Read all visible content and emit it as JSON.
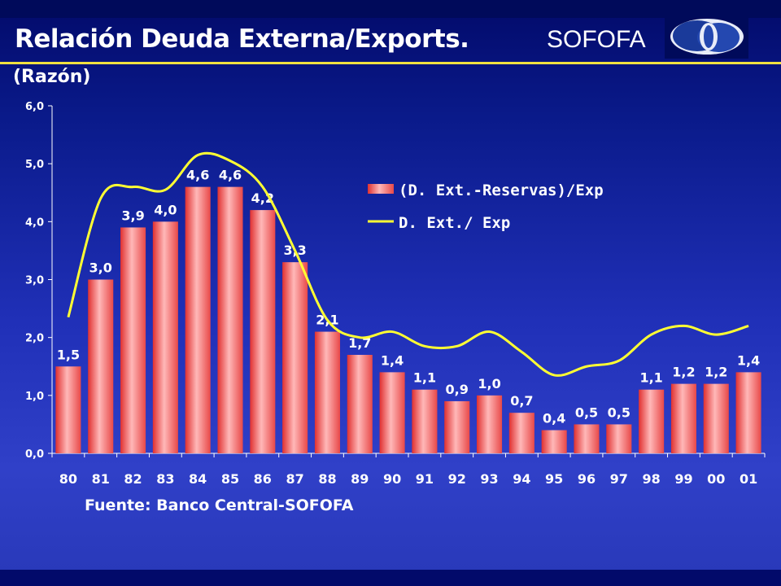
{
  "header": {
    "title": "Relación Deuda Externa/Exports.",
    "brand": "SOFOFA",
    "subtitle": "(Razón)"
  },
  "footer": {
    "source": "Fuente: Banco Central-SOFOFA"
  },
  "colors": {
    "bar": "#e84848",
    "bar_highlight": "#ffb0b0",
    "line": "#ffff33",
    "accent_rule": "#f0e040"
  },
  "chart_data": {
    "type": "bar",
    "categories": [
      "80",
      "81",
      "82",
      "83",
      "84",
      "85",
      "86",
      "87",
      "88",
      "89",
      "90",
      "91",
      "92",
      "93",
      "94",
      "95",
      "96",
      "97",
      "98",
      "99",
      "00",
      "01"
    ],
    "series": [
      {
        "name": "(D. Ext.-Reservas)/Exp",
        "type": "bar",
        "values": [
          1.5,
          3.0,
          3.9,
          4.0,
          4.6,
          4.6,
          4.2,
          3.3,
          2.1,
          1.7,
          1.4,
          1.1,
          0.9,
          1.0,
          0.7,
          0.4,
          0.5,
          0.5,
          1.1,
          1.2,
          1.2,
          1.4
        ],
        "labels": [
          "1,5",
          "3,0",
          "3,9",
          "4,0",
          "4,6",
          "4,6",
          "4,2",
          "3,3",
          "2,1",
          "1,7",
          "1,4",
          "1,1",
          "0,9",
          "1,0",
          "0,7",
          "0,4",
          "0,5",
          "0,5",
          "1,1",
          "1,2",
          "1,2",
          "1,4"
        ]
      },
      {
        "name": "D. Ext./ Exp",
        "type": "line",
        "values": [
          2.35,
          4.4,
          4.6,
          4.55,
          5.15,
          5.05,
          4.6,
          3.5,
          2.3,
          2.0,
          2.1,
          1.85,
          1.85,
          2.1,
          1.75,
          1.35,
          1.5,
          1.6,
          2.05,
          2.2,
          2.05,
          2.2
        ]
      }
    ],
    "y_ticks": [
      "0,0",
      "1,0",
      "2,0",
      "3,0",
      "4,0",
      "5,0",
      "6,0"
    ],
    "ylim": [
      0,
      6
    ],
    "legend_position": "upper-right inside plot",
    "grid": false
  }
}
